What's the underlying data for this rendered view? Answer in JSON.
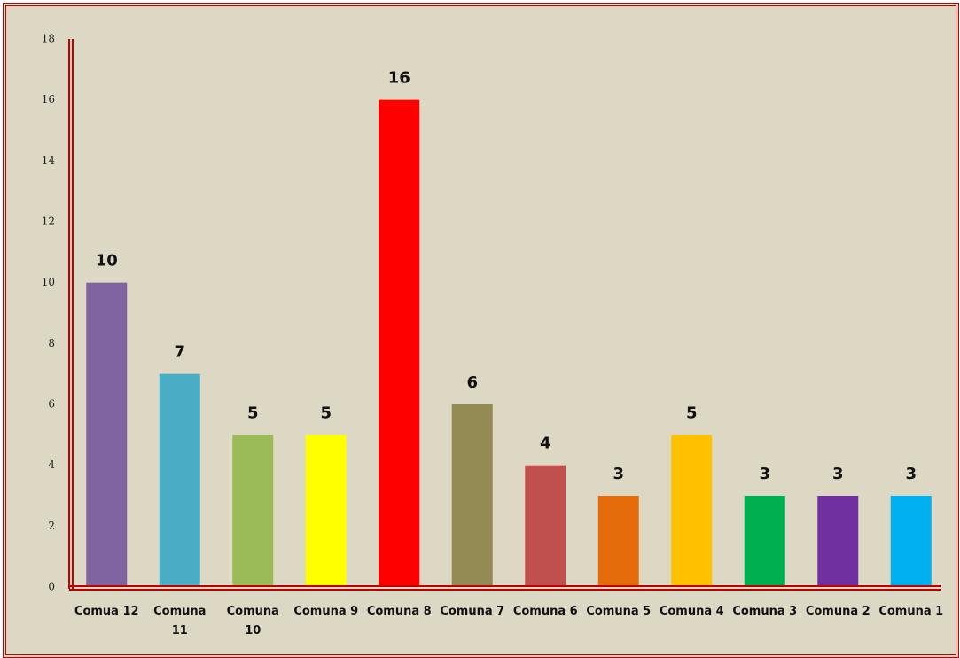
{
  "chart_data": {
    "type": "bar",
    "categories": [
      "Comua 12",
      "Comuna 11",
      "Comuna 10",
      "Comuna 9",
      "Comuna 8",
      "Comuna 7",
      "Comuna 6",
      "Comuna 5",
      "Comuna 4",
      "Comuna 3",
      "Comuna 2",
      "Comuna 1"
    ],
    "values": [
      10,
      7,
      5,
      5,
      16,
      6,
      4,
      3,
      5,
      3,
      3,
      3
    ],
    "colors": [
      "#8064a2",
      "#4bacc6",
      "#9bbb59",
      "#ffff00",
      "#ff0000",
      "#948a54",
      "#c0504d",
      "#e46c0a",
      "#ffc000",
      "#00b050",
      "#7030a0",
      "#00b0f0"
    ],
    "ylim": [
      0,
      18
    ],
    "yticks": [
      0,
      2,
      4,
      6,
      8,
      10,
      12,
      14,
      16,
      18
    ],
    "grid": false
  }
}
